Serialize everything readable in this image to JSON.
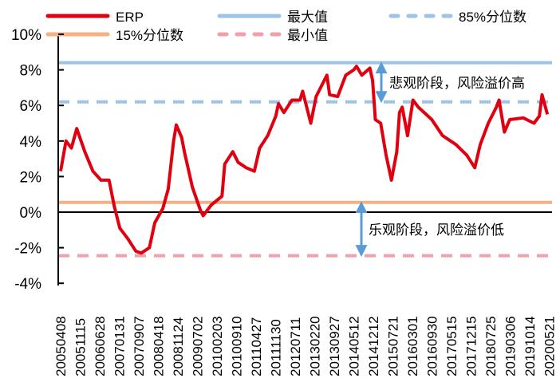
{
  "chart_data": {
    "type": "line",
    "title": "",
    "xlabel": "",
    "ylabel": "",
    "ylim": [
      -4,
      10
    ],
    "y_ticks": [
      "10%",
      "8%",
      "6%",
      "4%",
      "2%",
      "0%",
      "-2%",
      "-4%"
    ],
    "y_tick_values": [
      10,
      8,
      6,
      4,
      2,
      0,
      -2,
      -4
    ],
    "x_tick_labels": [
      "20050408",
      "20051115",
      "20060628",
      "20070131",
      "20070907",
      "20080418",
      "20081124",
      "20090702",
      "20100203",
      "20100910",
      "20110427",
      "20111130",
      "20120711",
      "20130220",
      "20130927",
      "20140512",
      "20141212",
      "20150721",
      "20160301",
      "20160930",
      "20170515",
      "20171215",
      "20180725",
      "20190306",
      "20191014",
      "20200521"
    ],
    "grid": false,
    "legend_position": "top",
    "legend": [
      {
        "name": "ERP",
        "color": "#e0000f",
        "style": "solid"
      },
      {
        "name": "最大值",
        "color": "#9dc3e6",
        "style": "solid"
      },
      {
        "name": "85%分位数",
        "color": "#9dc3e6",
        "style": "dashed"
      },
      {
        "name": "15%分位数",
        "color": "#f4b183",
        "style": "solid"
      },
      {
        "name": "最小值",
        "color": "#f0a0ac",
        "style": "dashed"
      }
    ],
    "reference_lines": [
      {
        "name": "最大值",
        "value": 8.4
      },
      {
        "name": "85%分位数",
        "value": 6.2
      },
      {
        "name": "15%分位数",
        "value": 0.55
      },
      {
        "name": "最小值",
        "value": -2.45
      }
    ],
    "series": [
      {
        "name": "ERP",
        "x": [
          "2005-04",
          "2005-06",
          "2005-08",
          "2005-10",
          "2006-01",
          "2006-04",
          "2006-07",
          "2006-10",
          "2006-12",
          "2007-02",
          "2007-05",
          "2007-08",
          "2007-10",
          "2008-01",
          "2008-03",
          "2008-06",
          "2008-08",
          "2008-10",
          "2008-11",
          "2009-01",
          "2009-02",
          "2009-05",
          "2009-08",
          "2009-09",
          "2009-12",
          "2010-04",
          "2010-05",
          "2010-08",
          "2010-10",
          "2011-01",
          "2011-04",
          "2011-06",
          "2011-09",
          "2011-12",
          "2012-01",
          "2012-03",
          "2012-06",
          "2012-09",
          "2012-10",
          "2013-01",
          "2013-03",
          "2013-07",
          "2013-08",
          "2013-11",
          "2014-02",
          "2014-05",
          "2014-06",
          "2014-08",
          "2014-11",
          "2014-12",
          "2015-01",
          "2015-03",
          "2015-05",
          "2015-07",
          "2015-09",
          "2015-10",
          "2015-11",
          "2016-01",
          "2016-03",
          "2016-05",
          "2016-10",
          "2017-02",
          "2017-07",
          "2017-11",
          "2018-02",
          "2018-04",
          "2018-07",
          "2018-10",
          "2018-11",
          "2019-01",
          "2019-03",
          "2019-08",
          "2019-12",
          "2020-02",
          "2020-03",
          "2020-05"
        ],
        "values": [
          2.3,
          4.0,
          3.6,
          4.7,
          3.4,
          2.3,
          1.8,
          1.8,
          0.3,
          -0.9,
          -1.5,
          -2.2,
          -2.3,
          -2.0,
          -0.6,
          0.2,
          1.3,
          4.0,
          4.9,
          4.2,
          3.4,
          1.4,
          0.1,
          -0.2,
          0.4,
          0.9,
          2.7,
          3.4,
          2.8,
          2.5,
          2.3,
          3.6,
          4.3,
          5.4,
          6.1,
          5.6,
          6.3,
          6.3,
          6.8,
          5.0,
          6.5,
          7.7,
          6.6,
          6.5,
          7.7,
          8.0,
          8.2,
          7.7,
          8.1,
          7.4,
          5.2,
          5.0,
          3.2,
          1.8,
          3.4,
          5.6,
          5.9,
          4.3,
          6.3,
          5.9,
          5.2,
          4.3,
          3.8,
          3.2,
          2.5,
          3.8,
          5.0,
          5.9,
          6.3,
          4.5,
          5.2,
          5.3,
          5.0,
          5.4,
          6.6,
          5.5
        ]
      }
    ],
    "annotations": [
      {
        "text": "悲观阶段，风险溢价高",
        "between": [
          "最大值",
          "85%分位数"
        ]
      },
      {
        "text": "乐观阶段，风险溢价低",
        "between": [
          "15%分位数",
          "最小值"
        ]
      }
    ]
  }
}
